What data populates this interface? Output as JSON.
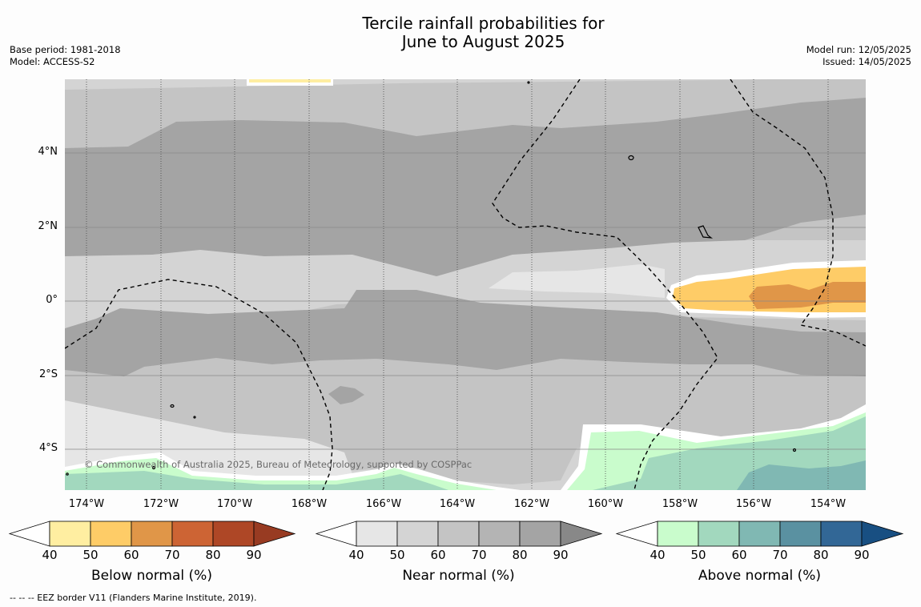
{
  "title": {
    "line1": "Tercile rainfall probabilities for",
    "line2": "June to August 2025"
  },
  "meta_left": {
    "base_period": "Base period: 1981-2018",
    "model": "Model: ACCESS-S2"
  },
  "meta_right": {
    "model_run": "Model run: 12/05/2025",
    "issued": "Issued: 14/05/2025"
  },
  "copyright": "© Commonwealth of Australia 2025, Bureau of Meteorology, supported by COSPPac",
  "longitude_labels": [
    "174°W",
    "172°W",
    "170°W",
    "168°W",
    "166°W",
    "164°W",
    "162°W",
    "160°W",
    "158°W",
    "156°W",
    "154°W"
  ],
  "latitude_labels": [
    "4°N",
    "2°N",
    "0°",
    "2°S",
    "4°S"
  ],
  "colorbars": [
    {
      "title": "Below normal (%)",
      "ticks": [
        "40",
        "50",
        "60",
        "70",
        "80",
        "90"
      ],
      "colors": [
        "#ffeea1",
        "#fecc67",
        "#e09648",
        "#cd6434",
        "#ae4726",
        "#983b22"
      ]
    },
    {
      "title": "Near normal (%)",
      "ticks": [
        "40",
        "50",
        "60",
        "70",
        "80",
        "90"
      ],
      "colors": [
        "#e6e6e6",
        "#d4d4d4",
        "#c4c4c4",
        "#b4b4b4",
        "#a4a4a4",
        "#888888"
      ]
    },
    {
      "title": "Above normal (%)",
      "ticks": [
        "40",
        "50",
        "60",
        "70",
        "80",
        "90"
      ],
      "colors": [
        "#c9fccc",
        "#a2d8be",
        "#80b8b3",
        "#5a91a1",
        "#326796",
        "#184f82"
      ]
    }
  ],
  "footnote": "--  --  -- EEZ border V11 (Flanders Marine Institute, 2019)."
}
